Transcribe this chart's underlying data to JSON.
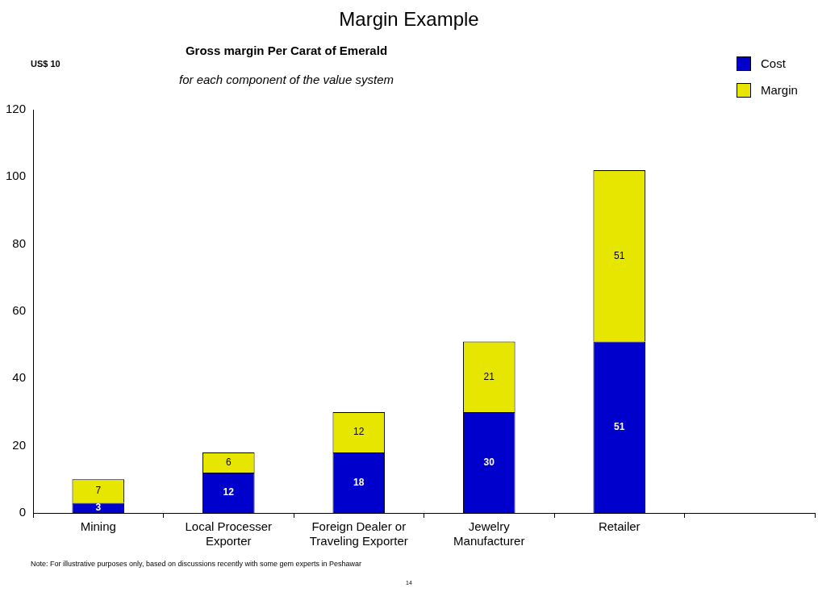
{
  "chart_data": {
    "type": "bar",
    "title": "Margin Example",
    "subtitle": "Gross margin Per Carat of Emerald",
    "ylabel": "US$ 10",
    "categories": [
      "Mining",
      "Local Processer Exporter",
      "Foreign Dealer or Traveling Exporter",
      "Jewelry Manufacturer",
      "Retailer",
      null
    ],
    "series": [
      {
        "name": "Cost",
        "color": "#0000cc",
        "values": [
          3,
          12,
          18,
          30,
          51,
          null
        ]
      },
      {
        "name": "Margin",
        "color": "#e6e600",
        "values": [
          7,
          6,
          12,
          21,
          51,
          null
        ]
      }
    ],
    "stacked": true,
    "data_labels": true,
    "ylim": [
      0,
      120
    ],
    "yticks": [
      0,
      20,
      40,
      60,
      80,
      100,
      120
    ],
    "grid": false,
    "legend": "top right",
    "annotations": [
      "for each component of the value system",
      "Note: For illustrative purposes only, based on discussions recently with some gem experts in Peshawar",
      "14"
    ]
  }
}
